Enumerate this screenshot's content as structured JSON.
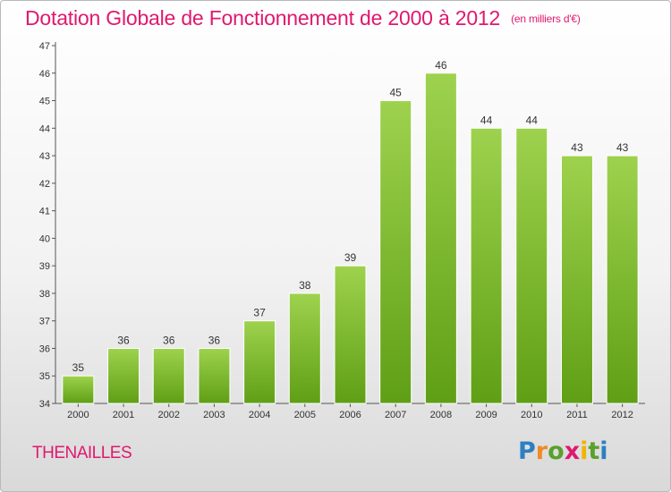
{
  "title": "Dotation Globale de Fonctionnement de 2000 à 2012",
  "subtitle": "(en milliers d'€)",
  "commune": "THENAILLES",
  "brand": {
    "letters": [
      "P",
      "r",
      "o",
      "x",
      "i",
      "t",
      "i"
    ],
    "colors": [
      "#2d7fc1",
      "#f08a24",
      "#5aa02c",
      "#e0186f",
      "#f0b400",
      "#5aa02c",
      "#2d7fc1"
    ]
  },
  "chart_data": {
    "type": "bar",
    "categories": [
      "2000",
      "2001",
      "2002",
      "2003",
      "2004",
      "2005",
      "2006",
      "2007",
      "2008",
      "2009",
      "2010",
      "2011",
      "2012"
    ],
    "values": [
      35,
      36,
      36,
      36,
      37,
      38,
      39,
      45,
      46,
      44,
      44,
      43,
      43
    ],
    "data_labels": [
      "35",
      "36",
      "36",
      "36",
      "37",
      "38",
      "39",
      "45",
      "46",
      "44",
      "44",
      "43",
      "43"
    ],
    "yticks": [
      "34",
      "35",
      "36",
      "37",
      "38",
      "39",
      "40",
      "41",
      "42",
      "43",
      "44",
      "45",
      "46",
      "47"
    ],
    "ylim": [
      34,
      47
    ],
    "grid": false,
    "legend": "none",
    "bar_color": "#7cbf2c"
  }
}
